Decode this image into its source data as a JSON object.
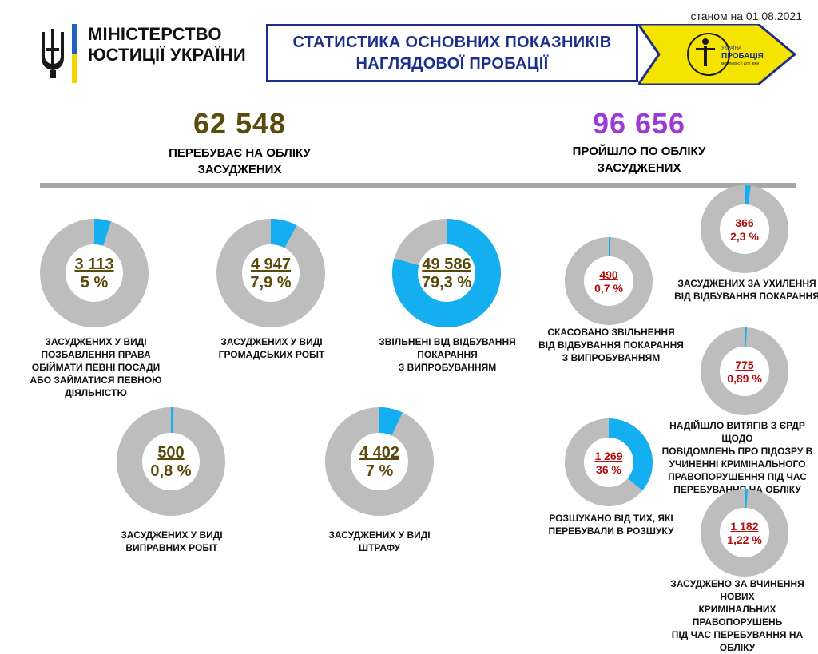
{
  "header": {
    "date": "станом на 01.08.2021",
    "ministry_line1": "МІНІСТЕРСТВО",
    "ministry_line2": "ЮСТИЦІЇ УКРАЇНИ",
    "title_line1": "СТАТИСТИКА ОСНОВНИХ ПОКАЗНИКІВ",
    "title_line2": "НАГЛЯДОВОЇ ПРОБАЦІЇ",
    "logo_text1": "УКРАЇНА",
    "logo_text2": "ПРОБАЦІЯ",
    "logo_text3": "можливості для змін"
  },
  "summary": {
    "registered_value": "62 548",
    "registered_label_1": "ПЕРЕБУВАЄ НА ОБЛІКУ",
    "registered_label_2": "ЗАСУДЖЕНИХ",
    "passed_value": "96 656",
    "passed_label_1": "ПРОЙШЛО ПО ОБЛІКУ",
    "passed_label_2": "ЗАСУДЖЕНИХ"
  },
  "colors": {
    "ring": "#bdbdbd",
    "accent": "#13aff0",
    "brown": "#5a4a0c",
    "purple": "#9b3bd6",
    "red": "#b10d0d",
    "navy": "#1d2f8c",
    "yellow": "#f5e400"
  },
  "donuts": [
    {
      "value": "3 113",
      "percent": "5 %",
      "fraction": 0.05,
      "caption": [
        "ЗАСУДЖЕНИХ  У ВИДІ",
        "ПОЗБАВЛЕННЯ  ПРАВА",
        "ОБІЙМАТИ  ПЕВНІ ПОСАДИ",
        "АБО ЗАЙМАТИСЯ  ПЕВНОЮ",
        "ДІЯЛЬНІСТЮ"
      ]
    },
    {
      "value": "4 947",
      "percent": "7,9 %",
      "fraction": 0.079,
      "caption": [
        "ЗАСУДЖЕНИХ  У ВИДІ",
        "ГРОМАДСЬКИХ  РОБІТ"
      ]
    },
    {
      "value": "49 586",
      "percent": "79,3 %",
      "fraction": 0.793,
      "caption": [
        "ЗВІЛЬНЕНІ   ВІД  ВІДБУВАННЯ",
        "ПОКАРАННЯ",
        "З ВИПРОБУВАННЯМ"
      ]
    },
    {
      "value": "500",
      "percent": "0,8 %",
      "fraction": 0.008,
      "caption": [
        "ЗАСУДЖЕНИХ  У ВИДІ",
        "ВИПРАВНИХ  РОБІТ"
      ]
    },
    {
      "value": "4 402",
      "percent": "7 %",
      "fraction": 0.07,
      "caption": [
        "ЗАСУДЖЕНИХ  У ВИДІ",
        "ШТРАФУ"
      ]
    },
    {
      "value": "490",
      "percent": "0,7 %",
      "fraction": 0.007,
      "caption": [
        "СКАСОВАНО  ЗВІЛЬНЕННЯ",
        "ВІД ВІДБУВАННЯ  ПОКАРАННЯ",
        "З ВИПРОБУВАННЯМ"
      ]
    },
    {
      "value": "366",
      "percent": "2,3 %",
      "fraction": 0.023,
      "caption": [
        "ЗАСУДЖЕНИХ  ЗА  УХИЛЕННЯ",
        "ВІД  ВІДБУВАННЯ  ПОКАРАННЯ"
      ]
    },
    {
      "value": "775",
      "percent": "0,89 %",
      "fraction": 0.0089,
      "caption": [
        "НАДІЙШЛО  ВИТЯГІВ  З  ЄРДР  ЩОДО",
        "ПОВІДОМЛЕНЬ  ПРО  ПІДОЗРУ  В",
        "УЧИНЕННІ   КРИМІНАЛЬНОГО",
        "ПРАВОПОРУШЕННЯ  ПІД  ЧАС",
        "ПЕРЕБУВАННЯ   НА  ОБЛІКУ"
      ]
    },
    {
      "value": "1 269",
      "percent": "36 %",
      "fraction": 0.36,
      "caption": [
        "РОЗШУКАНО  ВІД  ТИХ,  ЯКІ",
        "ПЕРЕБУВАЛИ  В  РОЗШУКУ"
      ]
    },
    {
      "value": "1 182",
      "percent": "1,22 %",
      "fraction": 0.0122,
      "caption": [
        "ЗАСУДЖЕНО  ЗА  ВЧИНЕННЯ  НОВИХ",
        "КРИМІНАЛЬНИХ   ПРАВОПОРУШЕНЬ",
        "ПІД  ЧАС  ПЕРЕБУВАННЯ  НА  ОБЛІКУ"
      ]
    }
  ]
}
